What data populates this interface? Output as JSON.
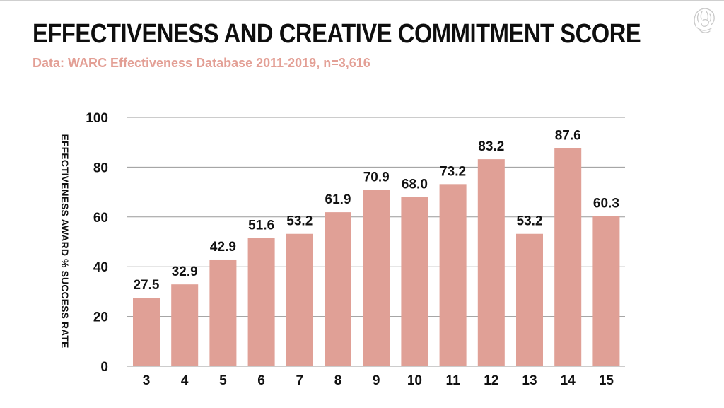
{
  "header": {
    "title": "EFFECTIVENESS AND CREATIVE COMMITMENT SCORE",
    "subtitle": "Data: WARC Effectiveness Database 2011-2019, n=3,616"
  },
  "colors": {
    "bar": "#e0a096",
    "subtitle": "#e39f95",
    "grid": "#9a9a9a",
    "text": "#111111"
  },
  "icons": {
    "logo": "lion-head-logo-icon"
  },
  "chart_data": {
    "type": "bar",
    "title": "EFFECTIVENESS AND CREATIVE COMMITMENT SCORE",
    "subtitle": "Data: WARC Effectiveness Database 2011-2019, n=3,616",
    "xlabel": "",
    "ylabel": "EFFECTIVENESS AWARD % SUCCESS RATE",
    "categories": [
      "3",
      "4",
      "5",
      "6",
      "7",
      "8",
      "9",
      "10",
      "11",
      "12",
      "13",
      "14",
      "15"
    ],
    "values": [
      27.5,
      32.9,
      42.9,
      51.6,
      53.2,
      61.9,
      70.9,
      68.0,
      73.2,
      83.2,
      53.2,
      87.6,
      60.3
    ],
    "value_labels": [
      "27.5",
      "32.9",
      "42.9",
      "51.6",
      "53.2",
      "61.9",
      "70.9",
      "68.0",
      "73.2",
      "83.2",
      "53.2",
      "87.6",
      "60.3"
    ],
    "ylim": [
      0,
      100
    ],
    "yticks": [
      "0",
      "20",
      "40",
      "60",
      "80",
      "100"
    ],
    "ytick_values": [
      0,
      20,
      40,
      60,
      80,
      100
    ],
    "grid": true,
    "legend": "none"
  }
}
